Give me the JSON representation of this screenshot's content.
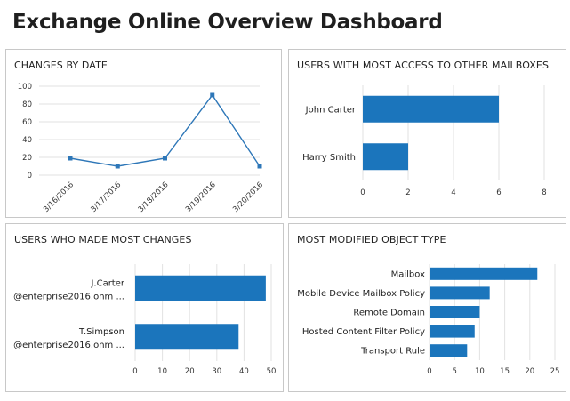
{
  "page": {
    "title": "Exchange Online Overview Dashboard"
  },
  "colors": {
    "accent": "#1b75bc",
    "line": "#2e77b8",
    "grid": "#e2e2e2"
  },
  "panels": {
    "changes_by_date": {
      "title": "CHANGES BY DATE"
    },
    "users_access": {
      "title": "USERS WITH MOST ACCESS TO OTHER MAILBOXES"
    },
    "users_changes": {
      "title": "USERS WHO MADE MOST CHANGES"
    },
    "modified_type": {
      "title": "MOST MODIFIED OBJECT TYPE"
    }
  },
  "chart_data": [
    {
      "id": "changes_by_date",
      "type": "line",
      "title": "CHANGES BY DATE",
      "categories": [
        "3/16/2016",
        "3/17/2016",
        "3/18/2016",
        "3/19/2016",
        "3/20/2016"
      ],
      "values": [
        19,
        10,
        19,
        90,
        10
      ],
      "ylim": [
        0,
        100
      ],
      "yticks": [
        0,
        20,
        40,
        60,
        80,
        100
      ],
      "grid": true
    },
    {
      "id": "users_access",
      "type": "bar",
      "orientation": "horizontal",
      "title": "USERS WITH MOST ACCESS TO OTHER MAILBOXES",
      "categories": [
        "John Carter",
        "Harry Smith"
      ],
      "values": [
        6,
        2
      ],
      "xlim": [
        0,
        8
      ],
      "xticks": [
        0,
        2,
        4,
        6,
        8
      ],
      "grid": true
    },
    {
      "id": "users_changes",
      "type": "bar",
      "orientation": "horizontal",
      "title": "USERS WHO MADE MOST CHANGES",
      "categories": [
        [
          "J.Carter",
          "@enterprise2016.onm ..."
        ],
        [
          "T.Simpson",
          "@enterprise2016.onm ..."
        ]
      ],
      "values": [
        48,
        38
      ],
      "xlim": [
        0,
        50
      ],
      "xticks": [
        0,
        10,
        20,
        30,
        40,
        50
      ],
      "grid": true
    },
    {
      "id": "modified_type",
      "type": "bar",
      "orientation": "horizontal",
      "title": "MOST MODIFIED OBJECT TYPE",
      "categories": [
        "Mailbox",
        "Mobile Device Mailbox Policy",
        "Remote Domain",
        "Hosted Content Filter Policy",
        "Transport Rule"
      ],
      "values": [
        21.5,
        12,
        10,
        9,
        7.5
      ],
      "xlim": [
        0,
        25
      ],
      "xticks": [
        0,
        5,
        10,
        15,
        20,
        25
      ],
      "grid": true
    }
  ]
}
